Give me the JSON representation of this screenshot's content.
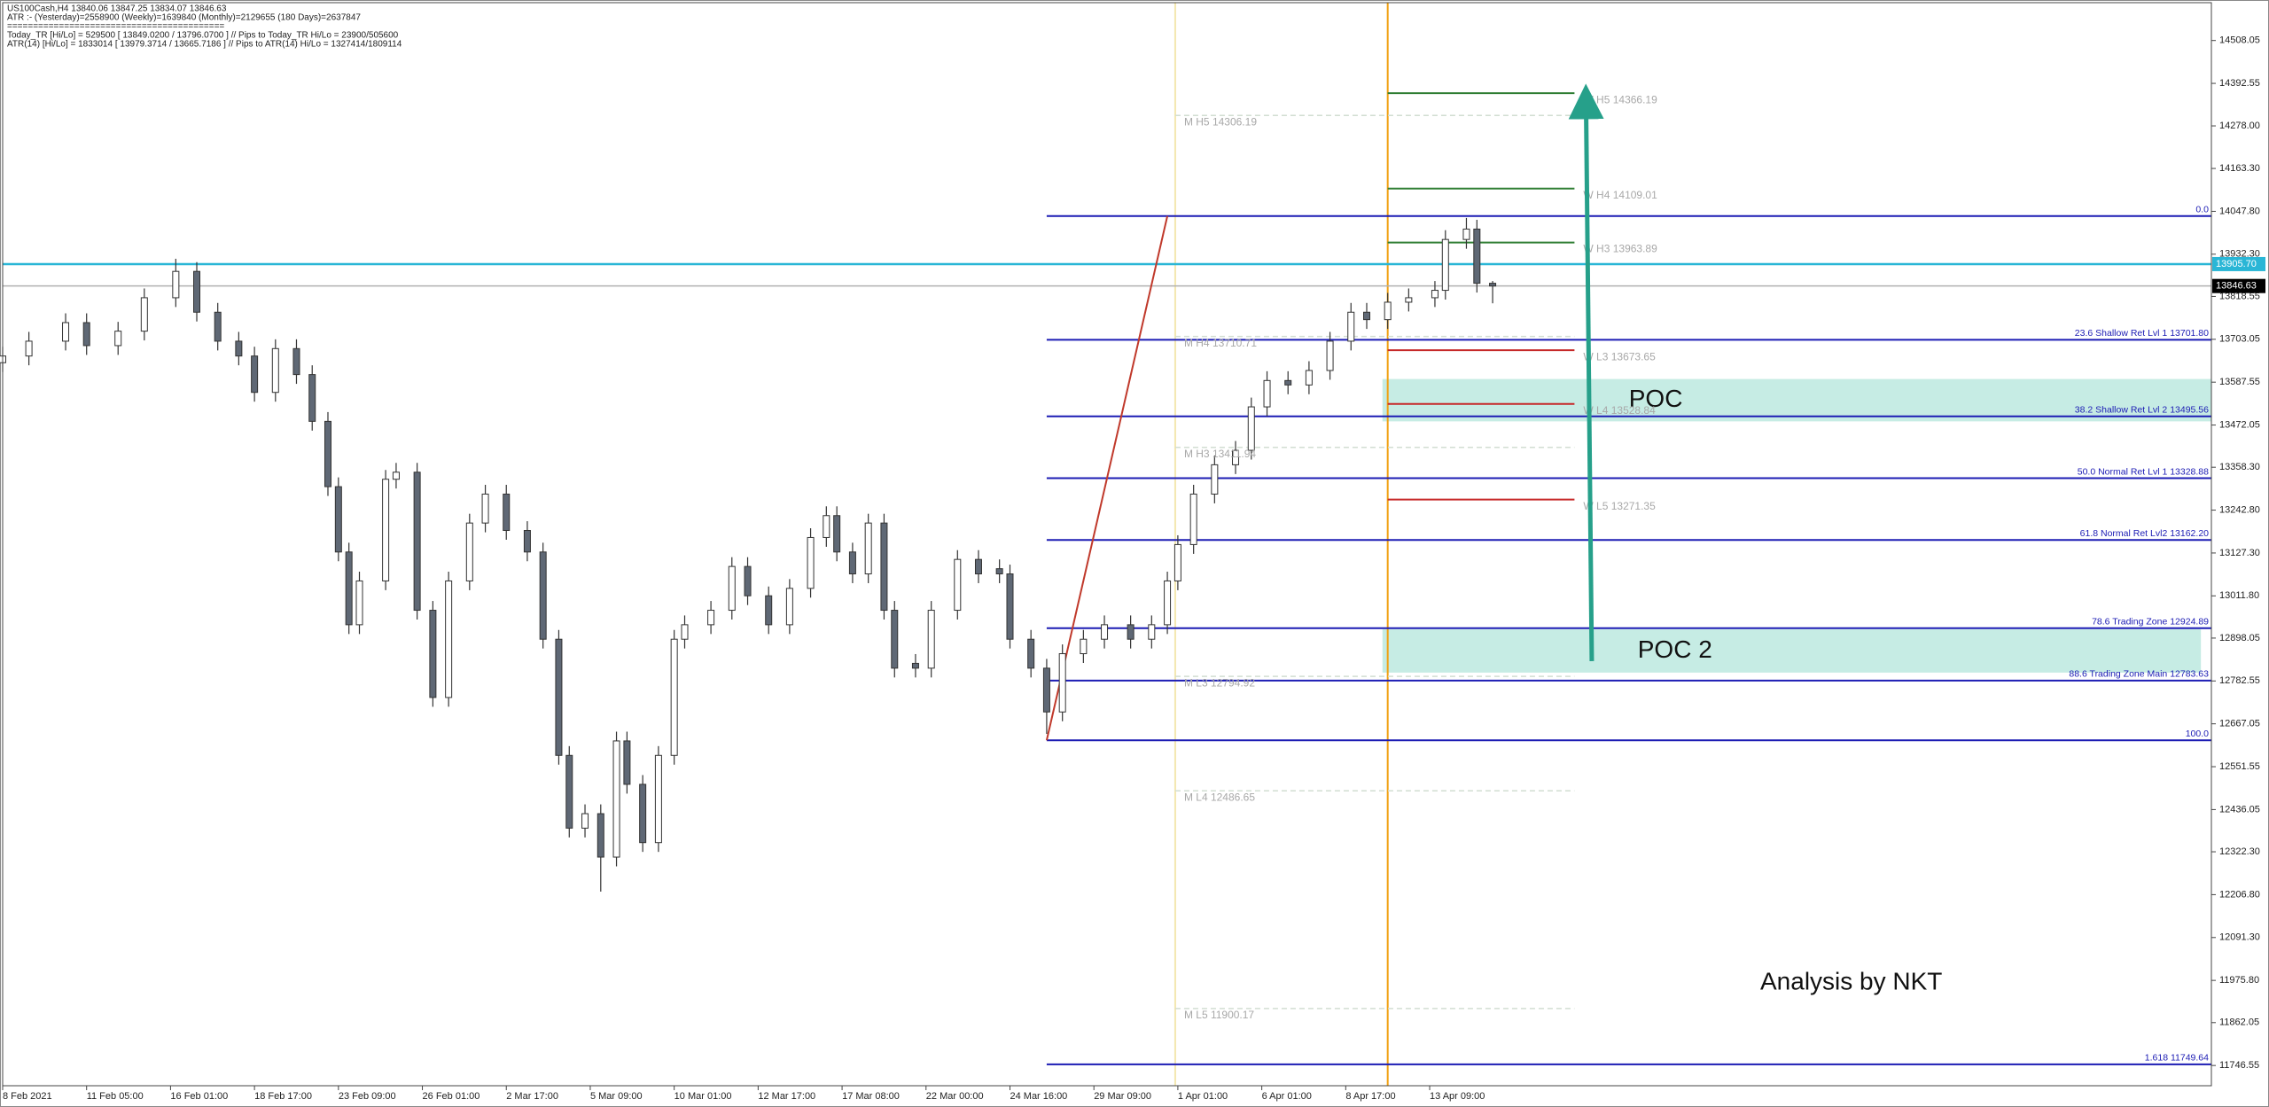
{
  "header": {
    "lines": [
      "US100Cash,H4  13840.06 13847.25 13834.07 13846.63",
      "ATR :- (Yesterday)=2558900      (Weekly)=1639840      (Monthly)=2129655      (180 Days)=2637847",
      "==========================================",
      "Today_TR [Hi/Lo] = 529500 [ 13849.0200 / 13796.0700 ]  // Pips to Today_TR Hi/Lo  = 23900/505600",
      "ATR(14)     [Hi/Lo] = 1833014 [ 13979.3714 / 13665.7186 ]  // Pips to ATR(14) Hi/Lo     = 1327414/1809114"
    ]
  },
  "chart_data": {
    "type": "candlestick",
    "up_color": "#ffffff",
    "down_color": "#5f6875",
    "wick_color": "#333333",
    "x": [
      0,
      5,
      12,
      16,
      22,
      27,
      33,
      37,
      41,
      45,
      48,
      52,
      56,
      59,
      62,
      64,
      66,
      68,
      73,
      75,
      79,
      82,
      85,
      89,
      92,
      96,
      100,
      103,
      106,
      108,
      111,
      114,
      117,
      119,
      122,
      125,
      128,
      130,
      135,
      139,
      142,
      146,
      150,
      154,
      157,
      159,
      162,
      165,
      168,
      170,
      174,
      177,
      182,
      186,
      190,
      192,
      196,
      199,
      202,
      206,
      210,
      215,
      219,
      222,
      224,
      227,
      231,
      235,
      238,
      241,
      245,
      249,
      253,
      257,
      260,
      264,
      268,
      273,
      275,
      279,
      281,
      284
    ],
    "open": [
      13640,
      13658,
      13698,
      13748,
      13686,
      13725,
      13815,
      13886,
      13776,
      13698,
      13658,
      13560,
      13678,
      13608,
      13482,
      13306,
      13130,
      12934,
      13052,
      13326,
      13345,
      12973,
      12738,
      13052,
      13208,
      13286,
      13188,
      13130,
      12895,
      12582,
      12386,
      12425,
      12308,
      12621,
      12504,
      12347,
      12582,
      12895,
      12934,
      12973,
      13091,
      13012,
      12934,
      13032,
      13169,
      13228,
      13130,
      13071,
      13208,
      12973,
      12830,
      12817,
      12973,
      13110,
      13085,
      13071,
      12895,
      12817,
      12699,
      12856,
      12895,
      12934,
      12895,
      12934,
      13052,
      13150,
      13286,
      13365,
      13404,
      13521,
      13592,
      13580,
      13619,
      13698,
      13776,
      13756,
      13803,
      13815,
      13835,
      13972,
      14000,
      13854
    ],
    "high": [
      13683,
      13723,
      13773,
      13773,
      13750,
      13840,
      13920,
      13911,
      13801,
      13723,
      13683,
      13703,
      13703,
      13633,
      13507,
      13331,
      13155,
      13077,
      13351,
      13370,
      13370,
      12998,
      13077,
      13233,
      13311,
      13311,
      13213,
      13155,
      12920,
      12607,
      12450,
      12450,
      12646,
      12646,
      12529,
      12607,
      12920,
      12959,
      12998,
      13116,
      13116,
      13037,
      13057,
      13194,
      13253,
      13253,
      13155,
      13233,
      13233,
      12998,
      12855,
      12998,
      13135,
      13135,
      13110,
      13096,
      12920,
      12842,
      12881,
      12920,
      12959,
      12959,
      12959,
      13077,
      13175,
      13311,
      13390,
      13429,
      13546,
      13617,
      13617,
      13644,
      13723,
      13801,
      13801,
      13828,
      13840,
      13860,
      13997,
      14030,
      14025,
      13860
    ],
    "low": [
      13615,
      13633,
      13673,
      13661,
      13661,
      13700,
      13790,
      13751,
      13673,
      13633,
      13535,
      13535,
      13583,
      13457,
      13281,
      13105,
      12909,
      12909,
      13027,
      13301,
      12948,
      12713,
      12713,
      13027,
      13183,
      13163,
      13105,
      12870,
      12557,
      12361,
      12361,
      12215,
      12283,
      12479,
      12322,
      12322,
      12557,
      12870,
      12909,
      12948,
      12987,
      12909,
      12909,
      13007,
      13144,
      13105,
      13046,
      13046,
      12948,
      12792,
      12792,
      12792,
      12948,
      13046,
      13046,
      12870,
      12792,
      12640,
      12674,
      12831,
      12870,
      12870,
      12870,
      12909,
      13027,
      13125,
      13261,
      13340,
      13379,
      13496,
      13555,
      13555,
      13594,
      13673,
      13731,
      13731,
      13778,
      13790,
      13810,
      13947,
      13829,
      13800
    ],
    "close": [
      13658,
      13698,
      13748,
      13686,
      13725,
      13815,
      13886,
      13776,
      13698,
      13658,
      13560,
      13678,
      13608,
      13482,
      13306,
      13130,
      12934,
      13052,
      13326,
      13345,
      12973,
      12738,
      13052,
      13208,
      13286,
      13188,
      13130,
      12895,
      12582,
      12386,
      12425,
      12308,
      12621,
      12504,
      12347,
      12582,
      12895,
      12934,
      12973,
      13091,
      13012,
      12934,
      13032,
      13169,
      13228,
      13130,
      13071,
      13208,
      12973,
      12817,
      12817,
      12973,
      13110,
      13071,
      13071,
      12895,
      12817,
      12699,
      12856,
      12895,
      12934,
      12895,
      12934,
      13052,
      13150,
      13286,
      13365,
      13404,
      13521,
      13592,
      13580,
      13619,
      13698,
      13776,
      13756,
      13803,
      13815,
      13835,
      13972,
      14000,
      13854,
      13846.63
    ],
    "xlim": [
      0,
      421
    ],
    "xticks": [
      {
        "value": 0,
        "label": "8 Feb 2021"
      },
      {
        "value": 16,
        "label": "11 Feb 05:00"
      },
      {
        "value": 32,
        "label": "16 Feb 01:00"
      },
      {
        "value": 48,
        "label": "18 Feb 17:00"
      },
      {
        "value": 64,
        "label": "23 Feb 09:00"
      },
      {
        "value": 80,
        "label": "26 Feb 01:00"
      },
      {
        "value": 96,
        "label": "2 Mar 17:00"
      },
      {
        "value": 112,
        "label": "5 Mar 09:00"
      },
      {
        "value": 128,
        "label": "10 Mar 01:00"
      },
      {
        "value": 144,
        "label": "12 Mar 17:00"
      },
      {
        "value": 160,
        "label": "17 Mar 08:00"
      },
      {
        "value": 176,
        "label": "22 Mar 00:00"
      },
      {
        "value": 192,
        "label": "24 Mar 16:00"
      },
      {
        "value": 208,
        "label": "29 Mar 09:00"
      },
      {
        "value": 224,
        "label": "1 Apr 01:00"
      },
      {
        "value": 240,
        "label": "6 Apr 01:00"
      },
      {
        "value": 256,
        "label": "8 Apr 17:00"
      },
      {
        "value": 272,
        "label": "13 Apr 09:00"
      }
    ],
    "ylim": [
      11692,
      14610
    ],
    "yticks": [
      14508.05,
      14392.55,
      {
        "value": 14278,
        "label": "14278.00"
      },
      {
        "value": 14163.3,
        "label": "14163.30"
      },
      {
        "value": 14047.8,
        "label": "14047.80"
      },
      {
        "value": 13932.3,
        "label": "13932.30"
      },
      13818.55,
      13703.05,
      13587.55,
      13472.05,
      {
        "value": 13358.3,
        "label": "13358.30"
      },
      {
        "value": 13242.8,
        "label": "13242.80"
      },
      {
        "value": 13127.3,
        "label": "13127.30"
      },
      {
        "value": 13011.8,
        "label": "13011.80"
      },
      12898.05,
      12782.55,
      12667.05,
      12551.55,
      12436.05,
      {
        "value": 12322.3,
        "label": "12322.30"
      },
      {
        "value": 12206.8,
        "label": "12206.80"
      },
      {
        "value": 12091.3,
        "label": "12091.30"
      },
      {
        "value": 11975.8,
        "label": "11975.80"
      },
      11862.05,
      11746.55
    ],
    "price_lines": [
      {
        "value": 13905.7,
        "label": "13905.70",
        "color": "#29b6d6",
        "text_color": "#ffffff"
      },
      {
        "value": 13846.63,
        "label": "13846.63",
        "color": "#000000",
        "text_color": "#ffffff"
      }
    ],
    "vlines": [
      {
        "x": 223.5,
        "color": "#f3e7b0"
      },
      {
        "x": 264,
        "color": "#f0a010"
      }
    ],
    "fib_color": "#1c1cb4",
    "fib_x_start": 199,
    "fib_levels": [
      {
        "label": "0.0",
        "value": 14035.2
      },
      {
        "label": "23.6 Shallow Ret Lvl 1 13701.80",
        "value": 13701.8
      },
      {
        "label": "38.2 Shallow Ret Lvl 2 13495.56",
        "value": 13495.56
      },
      {
        "label": "50.0 Normal Ret Lvl 1 13328.88",
        "value": 13328.88
      },
      {
        "label": "61.8 Normal Ret Lvl2 13162.20",
        "value": 13162.2
      },
      {
        "label": "78.6 Trading Zone 12924.89",
        "value": 12924.89
      },
      {
        "label": "88.6 Trading Zone Main 12783.63",
        "value": 12783.63
      },
      {
        "label": "100.0",
        "value": 12622.6
      },
      {
        "label": "1.618 11749.64",
        "value": 11749.64
      }
    ],
    "trend_line": {
      "x": [
        199,
        222
      ],
      "y": [
        12622.6,
        14035.2
      ],
      "color": "#c0392b"
    },
    "monthly_pivots": {
      "x_range": [
        223.5,
        299.6
      ],
      "color": "#d2ded2",
      "label_color": "#a8a8a8",
      "levels": [
        {
          "label": "M  H5 14306.19",
          "value": 14306.19
        },
        {
          "label": "M  H4 13710.71",
          "value": 13710.71
        },
        {
          "label": "M  H3 13411.94",
          "value": 13411.94
        },
        {
          "label": "M  L3 12794.92",
          "value": 12794.92
        },
        {
          "label": "M  L4 12486.65",
          "value": 12486.65
        },
        {
          "label": "M  L5 11900.17",
          "value": 11900.17
        }
      ]
    },
    "weekly_pivots": {
      "x_range": [
        264,
        299.6
      ],
      "label_color": "#a8a8a8",
      "levels": [
        {
          "label": "W  H5 14366.19",
          "value": 14366.19,
          "color": "#2e7d32"
        },
        {
          "label": "W  H4 14109.01",
          "value": 14109.01,
          "color": "#2e7d32"
        },
        {
          "label": "W  H3 13963.89",
          "value": 13963.89,
          "color": "#2e7d32"
        },
        {
          "label": "W  L3 13673.65",
          "value": 13673.65,
          "color": "#c62828"
        },
        {
          "label": "W  L4 13528.84",
          "value": 13528.84,
          "color": "#c62828"
        },
        {
          "label": "W  L5 13271.35",
          "value": 13271.35,
          "color": "#c62828"
        }
      ]
    },
    "zones": [
      {
        "label": "POC",
        "top": 13596,
        "bottom": 13482,
        "x_range": [
          263,
          421
        ],
        "color": "#c6ece4"
      },
      {
        "label": "POC 2",
        "top": 12922,
        "bottom": 12805,
        "x_range": [
          263,
          419
        ],
        "color": "#c6ece4"
      }
    ],
    "arrow": {
      "x": [
        302.9,
        301.8
      ],
      "y": [
        12836,
        14344
      ],
      "color": "#26a08a"
    },
    "annotation": "Analysis by NKT"
  }
}
